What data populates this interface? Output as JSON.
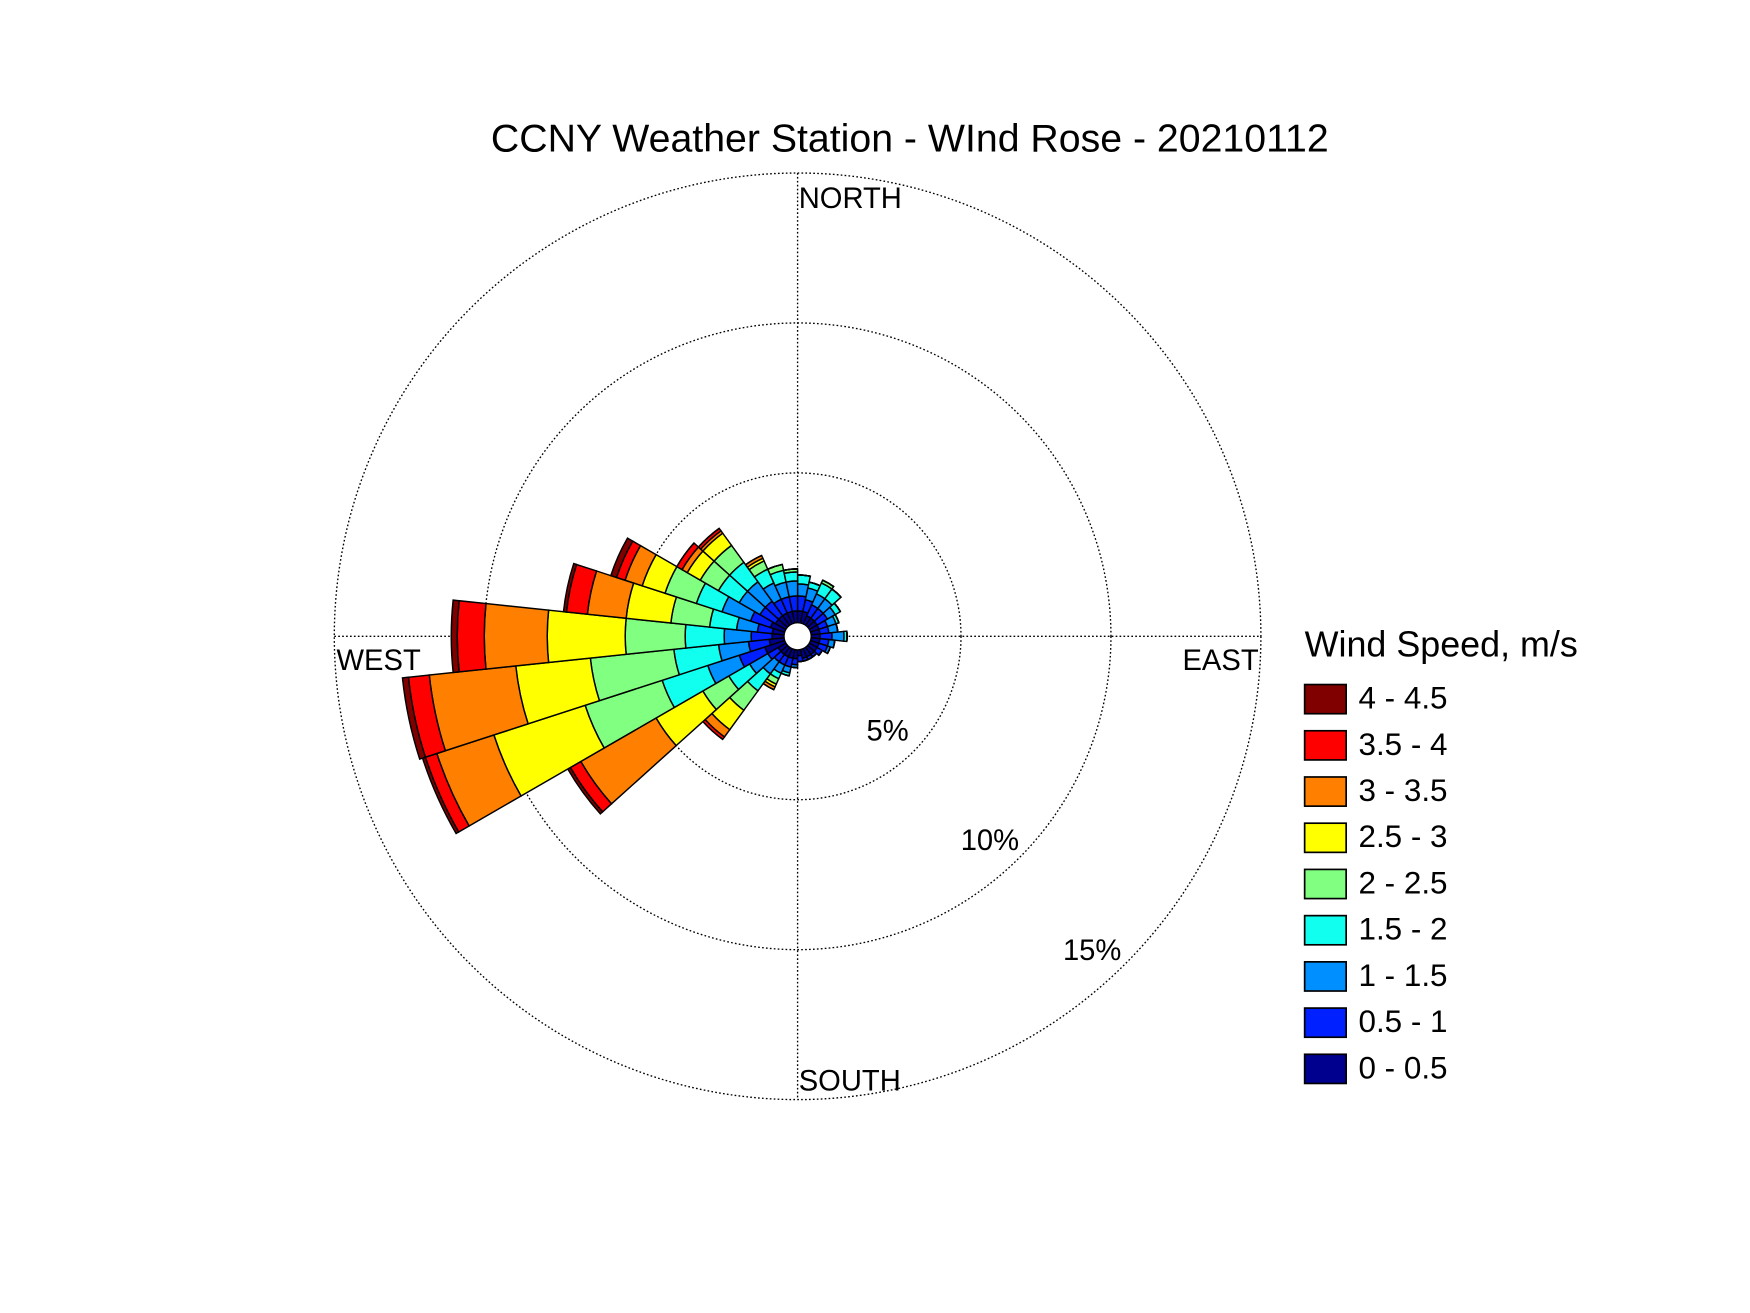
{
  "chart_data": {
    "type": "wind_rose",
    "title": "CCNY Weather Station - WInd Rose - 20210112",
    "legend_title": "Wind Speed, m/s",
    "direction_labels": {
      "north": "NORTH",
      "east": "EAST",
      "south": "SOUTH",
      "west": "WEST"
    },
    "categories": [
      null,
      null,
      null,
      null,
      null,
      null,
      null,
      null,
      null,
      null,
      null,
      null,
      null,
      null,
      null,
      null,
      null,
      null,
      null,
      null,
      null,
      null,
      null,
      null,
      null,
      null,
      null,
      null,
      null,
      null
    ],
    "rlim": [
      0,
      15
    ],
    "rticks": [
      {
        "value": 5,
        "label": "5%"
      },
      {
        "value": 10,
        "label": "10%"
      },
      {
        "value": 15,
        "label": "15%"
      }
    ],
    "series": [
      {
        "name": "0 - 0.5",
        "color": "#00008f",
        "values": [
          0.4,
          0.4,
          0.3,
          0.3,
          0.3,
          0.3,
          0.3,
          0.3,
          0.3,
          0.3,
          0.3,
          0.3,
          0.3,
          0.3,
          0.2,
          0.3,
          0.3,
          0.3,
          0.3,
          0.3,
          0.7,
          0.5,
          0.4,
          0.4,
          0.5,
          0.4,
          0.4,
          0.4,
          0.4,
          0.4
        ]
      },
      {
        "name": "0.5 - 1",
        "color": "#0020ff",
        "values": [
          0.5,
          0.4,
          0.4,
          0.4,
          0.4,
          0.3,
          0.3,
          0.4,
          0.3,
          0.3,
          0.2,
          0.1,
          0.1,
          0.1,
          0.2,
          0.2,
          0.3,
          0.3,
          0.3,
          0.4,
          0.9,
          0.7,
          0.7,
          0.5,
          0.7,
          0.6,
          0.6,
          0.5,
          0.5,
          0.5
        ]
      },
      {
        "name": "1 - 1.5",
        "color": "#008fff",
        "values": [
          0.4,
          0.4,
          0.4,
          0.4,
          0.3,
          0.3,
          0.3,
          0.4,
          0.2,
          0.1,
          0,
          0,
          0,
          0,
          0,
          0.1,
          0.2,
          0.3,
          0.5,
          0.7,
          1.1,
          1.0,
          0.9,
          0.7,
          1.0,
          0.8,
          0.8,
          0.6,
          0.5,
          0.5
        ]
      },
      {
        "name": "1.5 - 2",
        "color": "#10ffef",
        "values": [
          0.3,
          0.2,
          0.4,
          0.4,
          0.2,
          0.1,
          0,
          0.1,
          0,
          0,
          0,
          0,
          0,
          0,
          0,
          0,
          0.1,
          0.2,
          0.7,
          0.8,
          1.6,
          1.5,
          1.3,
          0.9,
          0.9,
          0.8,
          0.8,
          0.5,
          0.4,
          0.3
        ]
      },
      {
        "name": "2 - 2.5",
        "color": "#80ff80",
        "values": [
          0,
          0,
          0.1,
          0,
          0,
          0,
          0,
          0,
          0,
          0,
          0,
          0,
          0,
          0,
          0,
          0,
          0,
          0.2,
          0.8,
          1.0,
          2.7,
          2.8,
          2.0,
          1.3,
          1.1,
          0.7,
          0.7,
          0.3,
          0.2,
          0.1
        ]
      },
      {
        "name": "2.5 - 3",
        "color": "#ffff00",
        "values": [
          0,
          0,
          0,
          0,
          0,
          0,
          0,
          0,
          0,
          0,
          0,
          0,
          0,
          0,
          0,
          0,
          0,
          0.1,
          0.8,
          1.8,
          3.2,
          2.5,
          2.6,
          1.5,
          0.8,
          0.5,
          0.5,
          0.1,
          0,
          0
        ]
      },
      {
        "name": "3 - 3.5",
        "color": "#ff8000",
        "values": [
          0,
          0,
          0,
          0,
          0,
          0,
          0,
          0,
          0,
          0,
          0,
          0,
          0,
          0,
          0,
          0,
          0,
          0.1,
          0.3,
          2.9,
          2.0,
          2.9,
          2.1,
          1.3,
          0.6,
          0.2,
          0.1,
          0.1,
          0,
          0
        ]
      },
      {
        "name": "3.5 - 4",
        "color": "#ff0000",
        "values": [
          0,
          0,
          0,
          0,
          0,
          0,
          0,
          0,
          0,
          0,
          0,
          0,
          0,
          0,
          0,
          0,
          0,
          0,
          0.1,
          0.4,
          0.4,
          0.7,
          0.9,
          0.7,
          0.3,
          0.2,
          0.1,
          0,
          0,
          0
        ]
      },
      {
        "name": "4 - 4.5",
        "color": "#800000",
        "values": [
          0,
          0,
          0,
          0,
          0,
          0,
          0,
          0,
          0,
          0,
          0,
          0,
          0,
          0,
          0,
          0,
          0,
          0,
          0,
          0.1,
          0.1,
          0.2,
          0.2,
          0.1,
          0.2,
          0,
          0,
          0,
          0,
          0
        ]
      }
    ]
  }
}
